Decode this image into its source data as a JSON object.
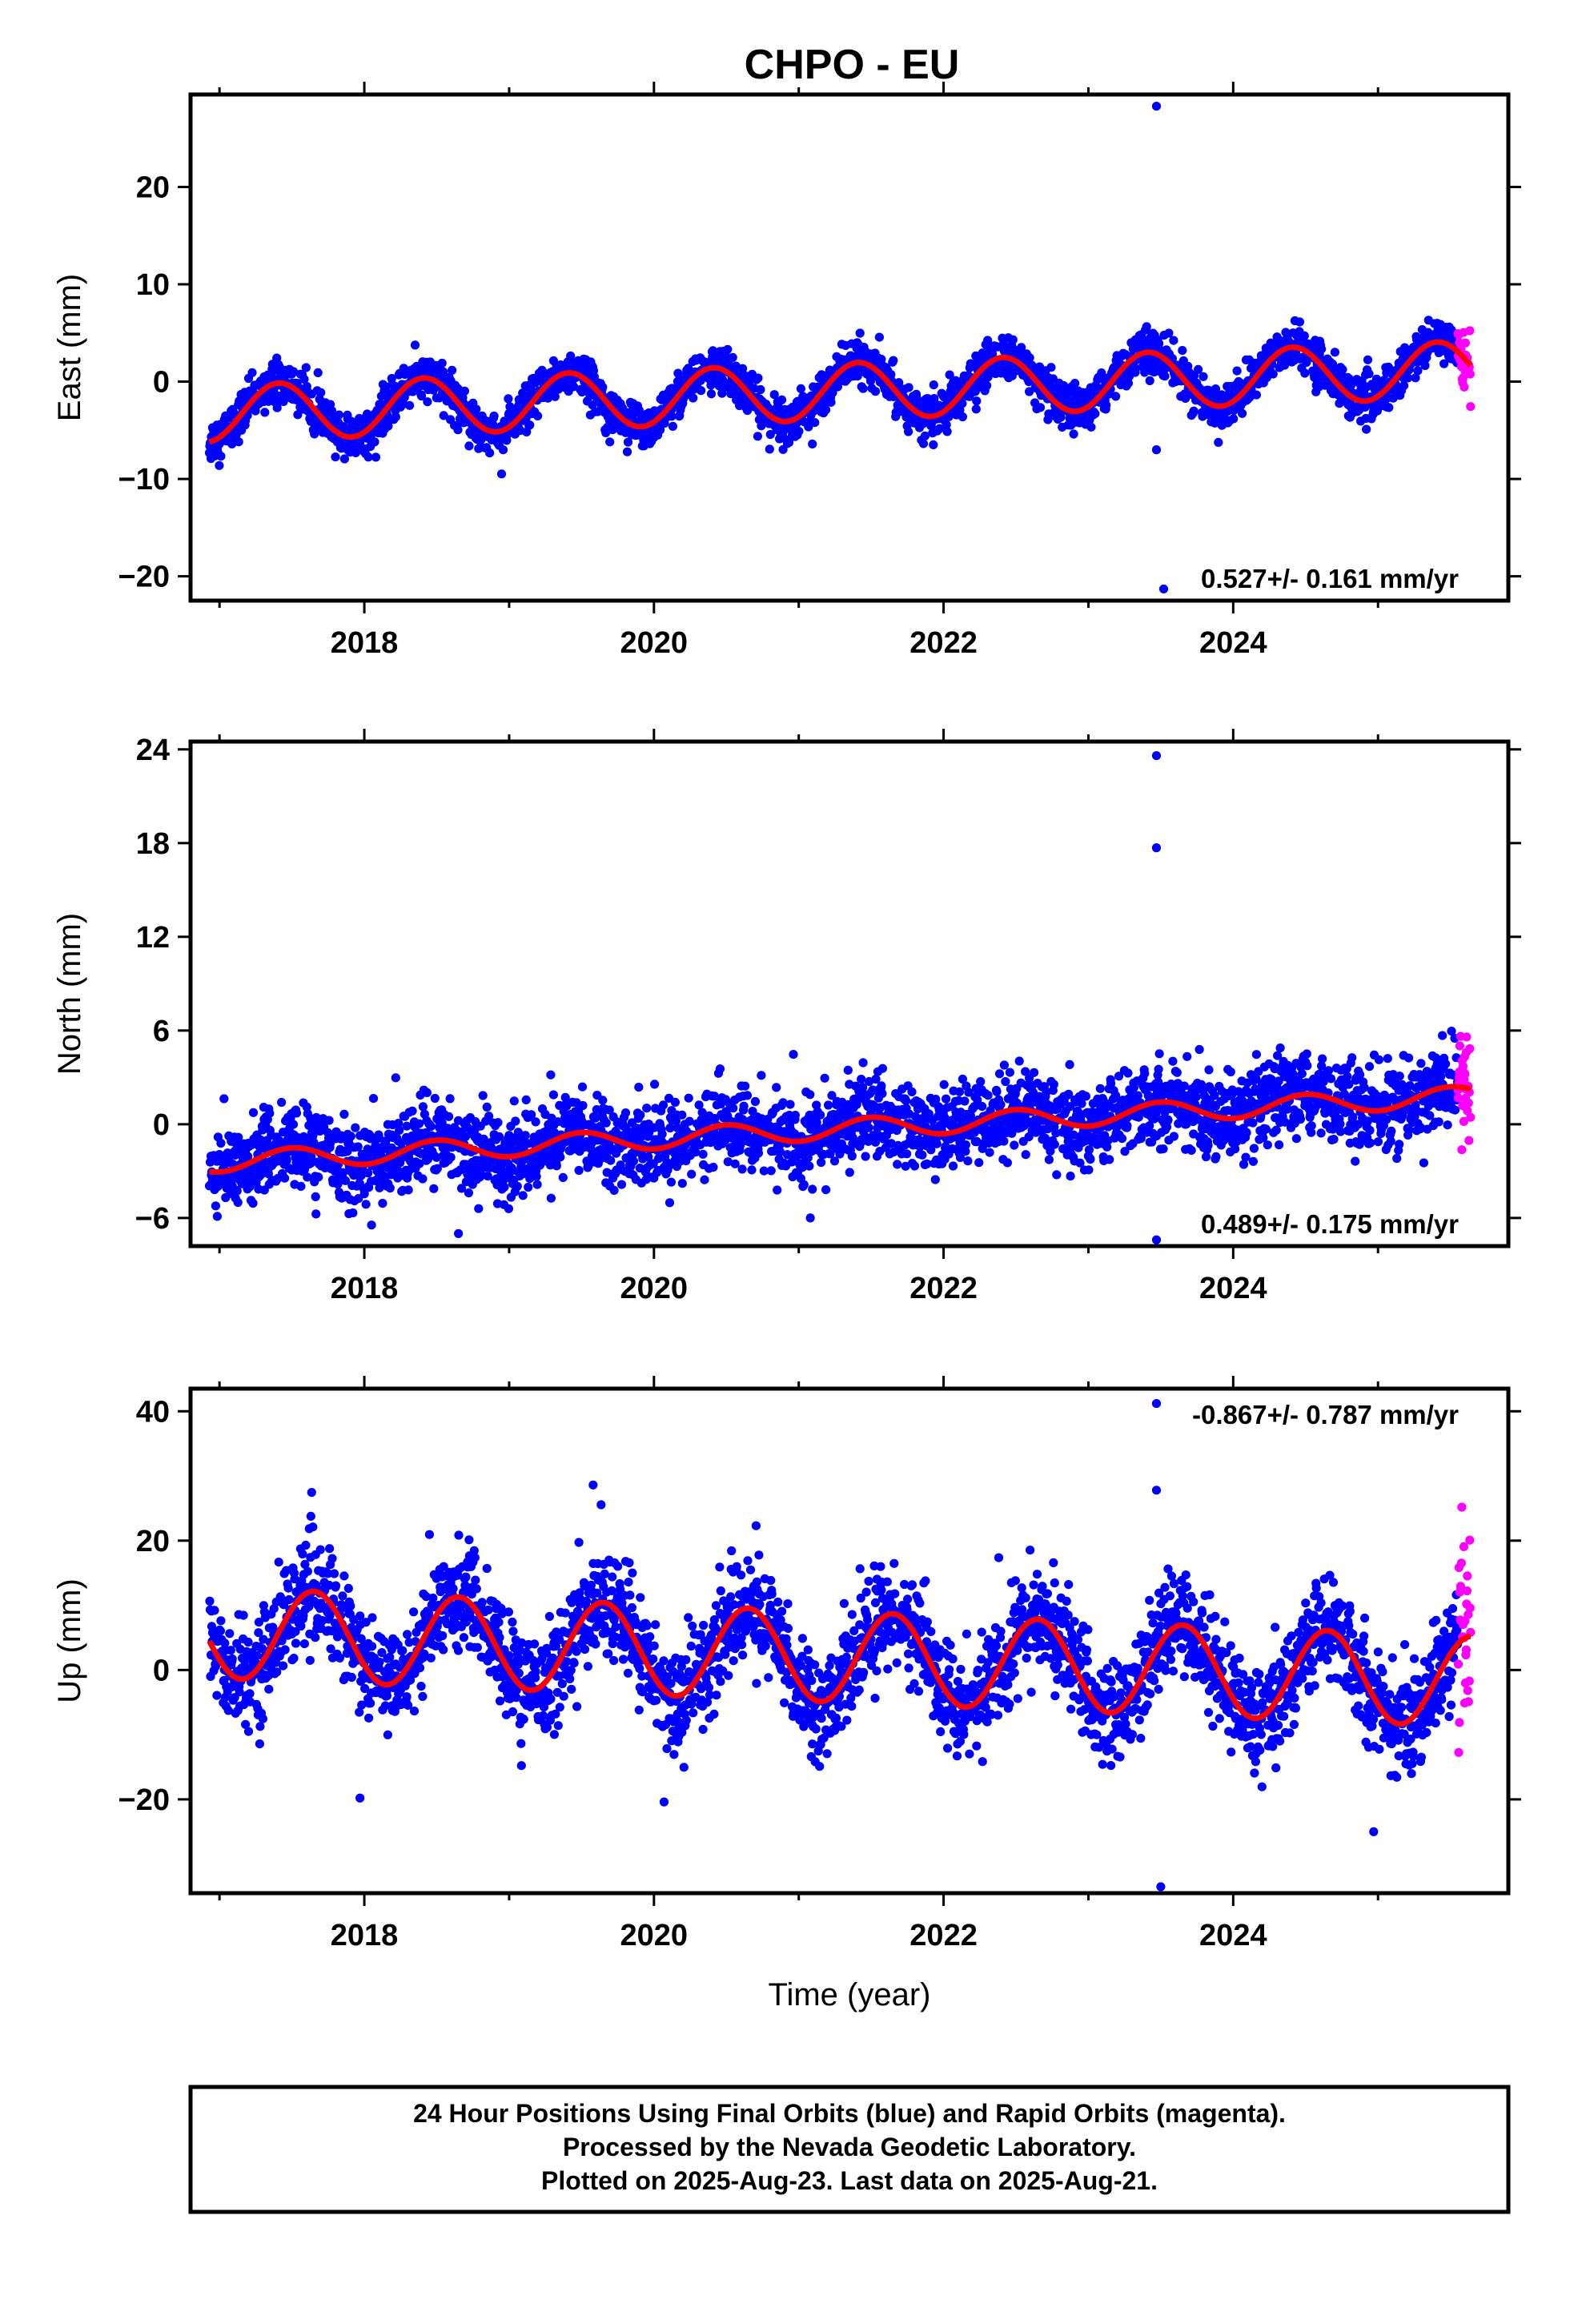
{
  "title": "CHPO - EU",
  "colors": {
    "final_orbits": "#0000ff",
    "rapid_orbits": "#ff00ff",
    "model_fit": "#ff0000",
    "frame": "#000000"
  },
  "chart_data": [
    {
      "type": "scatter",
      "panel": "east",
      "ylabel": "East (mm)",
      "xlabel": "",
      "xlim": [
        2016.8,
        2025.9
      ],
      "ylim": [
        -22.5,
        29.5
      ],
      "xticks": [
        2018,
        2020,
        2022,
        2024
      ],
      "yticks": [
        -20,
        -10,
        0,
        10,
        20
      ],
      "rate_annotation": "0.527+/- 0.161 mm/yr",
      "data_start": 2016.93,
      "data_end": 2025.64,
      "rapid_start": 2025.55,
      "trend_mm_per_yr": 0.527,
      "offset_mm": -1.0,
      "annual_amplitude_mm": 2.9,
      "annual_peak_fraction": 0.41,
      "noise_sd_mm": 1.1,
      "outliers": [
        {
          "x": 2023.47,
          "y": 28.3
        },
        {
          "x": 2023.47,
          "y": -7.0
        },
        {
          "x": 2023.52,
          "y": -21.3
        }
      ]
    },
    {
      "type": "scatter",
      "panel": "north",
      "ylabel": "North (mm)",
      "xlabel": "",
      "xlim": [
        2016.8,
        2025.9
      ],
      "ylim": [
        -7.8,
        24.5
      ],
      "xticks": [
        2018,
        2020,
        2022,
        2024
      ],
      "yticks": [
        -6,
        0,
        6,
        12,
        18,
        24
      ],
      "rate_annotation": "0.489+/- 0.175 mm/yr",
      "data_start": 2016.93,
      "data_end": 2025.64,
      "rapid_start": 2025.55,
      "trend_mm_per_yr": 0.489,
      "offset_mm": -0.3,
      "annual_amplitude_mm": 0.65,
      "annual_peak_fraction": 0.5,
      "noise_sd_mm": 1.3,
      "outliers": [
        {
          "x": 2023.47,
          "y": 23.6
        },
        {
          "x": 2023.47,
          "y": 17.7
        },
        {
          "x": 2023.47,
          "y": -7.4
        },
        {
          "x": 2021.08,
          "y": -6.0
        },
        {
          "x": 2018.65,
          "y": -7.0
        }
      ]
    },
    {
      "type": "scatter",
      "panel": "up",
      "ylabel": "Up (mm)",
      "xlabel": "Time (year)",
      "xlim": [
        2016.8,
        2025.9
      ],
      "ylim": [
        -34.5,
        43.5
      ],
      "xticks": [
        2018,
        2020,
        2022,
        2024
      ],
      "yticks": [
        -20,
        0,
        20,
        40
      ],
      "rate_annotation": "-0.867+/- 0.787 mm/yr",
      "data_start": 2016.93,
      "data_end": 2025.64,
      "rapid_start": 2025.55,
      "trend_mm_per_yr": -0.867,
      "offset_mm": 2.0,
      "annual_amplitude_mm": 7.0,
      "annual_peak_fraction": 0.65,
      "noise_sd_mm": 4.0,
      "outliers": [
        {
          "x": 2023.47,
          "y": 41.2
        },
        {
          "x": 2023.47,
          "y": 27.8
        },
        {
          "x": 2023.5,
          "y": -33.5
        },
        {
          "x": 2019.58,
          "y": 28.6
        },
        {
          "x": 2017.97,
          "y": -19.8
        },
        {
          "x": 2020.07,
          "y": -20.4
        },
        {
          "x": 2024.97,
          "y": -25.0
        }
      ]
    }
  ],
  "caption": {
    "line1": "24 Hour Positions Using Final Orbits (blue) and Rapid Orbits (magenta).",
    "line2": "Processed by the Nevada Geodetic Laboratory.",
    "line3": "Plotted on 2025-Aug-23. Last data on 2025-Aug-21."
  }
}
